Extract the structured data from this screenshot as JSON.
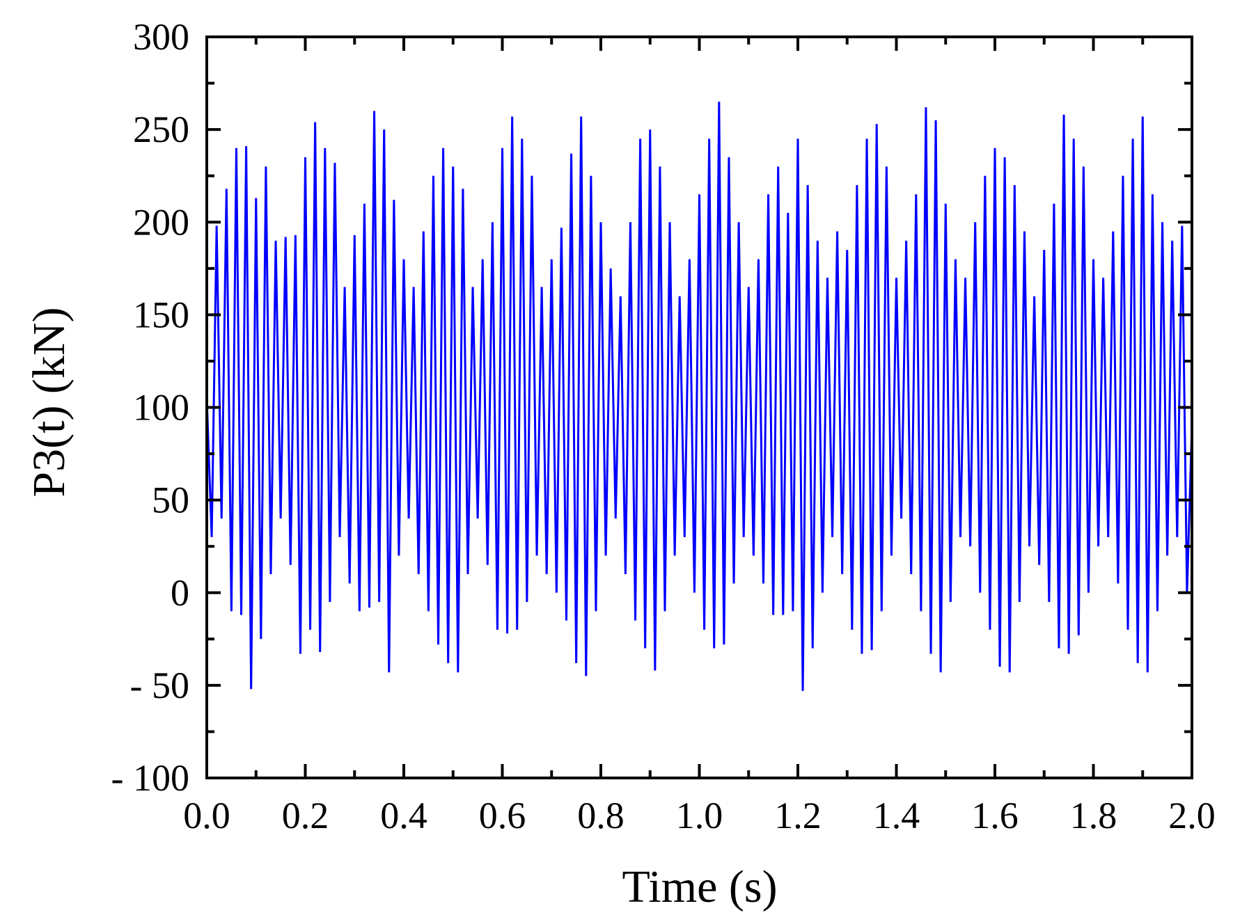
{
  "chart_data": {
    "type": "line",
    "x_label": "Time  (s)",
    "y_label": "P3(t) (kN)",
    "color": "#0000ff",
    "x": [
      0,
      0.01,
      0.02,
      0.03,
      0.04,
      0.05,
      0.06,
      0.07,
      0.08,
      0.09,
      0.1,
      0.11,
      0.12,
      0.13,
      0.14,
      0.15,
      0.16,
      0.17,
      0.18,
      0.19,
      0.2,
      0.21,
      0.22,
      0.23,
      0.24,
      0.25,
      0.26,
      0.27,
      0.28,
      0.29,
      0.3,
      0.31,
      0.32,
      0.33,
      0.34,
      0.35,
      0.36,
      0.37,
      0.38,
      0.39,
      0.4,
      0.41,
      0.42,
      0.43,
      0.44,
      0.45,
      0.46,
      0.47,
      0.48,
      0.49,
      0.5,
      0.51,
      0.52,
      0.53,
      0.54,
      0.55,
      0.56,
      0.57,
      0.58,
      0.59,
      0.6,
      0.61,
      0.62,
      0.63,
      0.64,
      0.65,
      0.66,
      0.67,
      0.68,
      0.69,
      0.7,
      0.71,
      0.72,
      0.73,
      0.74,
      0.75,
      0.76,
      0.77,
      0.78,
      0.79,
      0.8,
      0.81,
      0.82,
      0.83,
      0.84,
      0.85,
      0.86,
      0.87,
      0.88,
      0.89,
      0.9,
      0.91,
      0.92,
      0.93,
      0.94,
      0.95,
      0.96,
      0.97,
      0.98,
      0.99,
      1,
      1.01,
      1.02,
      1.03,
      1.04,
      1.05,
      1.06,
      1.07,
      1.08,
      1.09,
      1.1,
      1.11,
      1.12,
      1.13,
      1.14,
      1.15,
      1.16,
      1.17,
      1.18,
      1.19,
      1.2,
      1.21,
      1.22,
      1.23,
      1.24,
      1.25,
      1.26,
      1.27,
      1.28,
      1.29,
      1.3,
      1.31,
      1.32,
      1.33,
      1.34,
      1.35,
      1.36,
      1.37,
      1.38,
      1.39,
      1.4,
      1.41,
      1.42,
      1.43,
      1.44,
      1.45,
      1.46,
      1.47,
      1.48,
      1.49,
      1.5,
      1.51,
      1.52,
      1.53,
      1.54,
      1.55,
      1.56,
      1.57,
      1.58,
      1.59,
      1.6,
      1.61,
      1.62,
      1.63,
      1.64,
      1.65,
      1.66,
      1.67,
      1.68,
      1.69,
      1.7,
      1.71,
      1.72,
      1.73,
      1.74,
      1.75,
      1.76,
      1.77,
      1.78,
      1.79,
      1.8,
      1.81,
      1.82,
      1.83,
      1.84,
      1.85,
      1.86,
      1.87,
      1.88,
      1.89,
      1.9,
      1.91,
      1.92,
      1.93,
      1.94,
      1.95,
      1.96,
      1.97,
      1.98,
      1.99,
      2
    ],
    "values": [
      105,
      30,
      198,
      40,
      218,
      -10,
      240,
      -12,
      241,
      -52,
      213,
      -25,
      230,
      10,
      190,
      40,
      192,
      15,
      193,
      -33,
      235,
      -20,
      254,
      -32,
      240,
      -5,
      232,
      30,
      165,
      5,
      193,
      -10,
      210,
      -8,
      260,
      -5,
      250,
      -43,
      212,
      20,
      180,
      40,
      165,
      10,
      195,
      -10,
      225,
      -28,
      240,
      -38,
      230,
      -43,
      218,
      10,
      165,
      40,
      180,
      15,
      200,
      -20,
      240,
      -22,
      257,
      -20,
      245,
      -5,
      225,
      20,
      165,
      10,
      180,
      0,
      197,
      -15,
      237,
      -38,
      257,
      -45,
      225,
      -10,
      200,
      20,
      175,
      40,
      160,
      10,
      200,
      -15,
      245,
      -30,
      250,
      -42,
      230,
      -10,
      200,
      20,
      160,
      30,
      180,
      0,
      215,
      -20,
      245,
      -30,
      265,
      -28,
      235,
      5,
      200,
      30,
      165,
      20,
      180,
      5,
      215,
      -12,
      230,
      -12,
      205,
      -10,
      245,
      -53,
      220,
      -30,
      190,
      0,
      170,
      30,
      195,
      10,
      185,
      -20,
      220,
      -33,
      245,
      -31,
      253,
      -10,
      230,
      20,
      170,
      40,
      190,
      10,
      215,
      -10,
      262,
      -33,
      255,
      -43,
      210,
      -5,
      180,
      30,
      170,
      25,
      200,
      0,
      225,
      -20,
      240,
      -40,
      235,
      -43,
      220,
      -5,
      195,
      25,
      160,
      15,
      185,
      -5,
      210,
      -30,
      258,
      -33,
      245,
      -23,
      230,
      0,
      180,
      25,
      170,
      30,
      195,
      5,
      225,
      -20,
      245,
      -38,
      257,
      -43,
      215,
      -10,
      200,
      20,
      190,
      30,
      198,
      0,
      90
    ],
    "xlim": [
      0,
      2
    ],
    "xticks": [
      {
        "value": 0,
        "label": "0.0"
      },
      0.2,
      0.4,
      0.6,
      0.8,
      {
        "value": 1,
        "label": "1.0"
      },
      1.2,
      1.4,
      1.6,
      1.8,
      {
        "value": 2,
        "label": "2.0"
      }
    ],
    "ylim": [
      -100,
      300
    ],
    "yticks": [
      {
        "value": -100,
        "label": "- 100"
      },
      {
        "value": -50,
        "label": "- 50"
      },
      0,
      50,
      100,
      150,
      200,
      250,
      300
    ]
  }
}
